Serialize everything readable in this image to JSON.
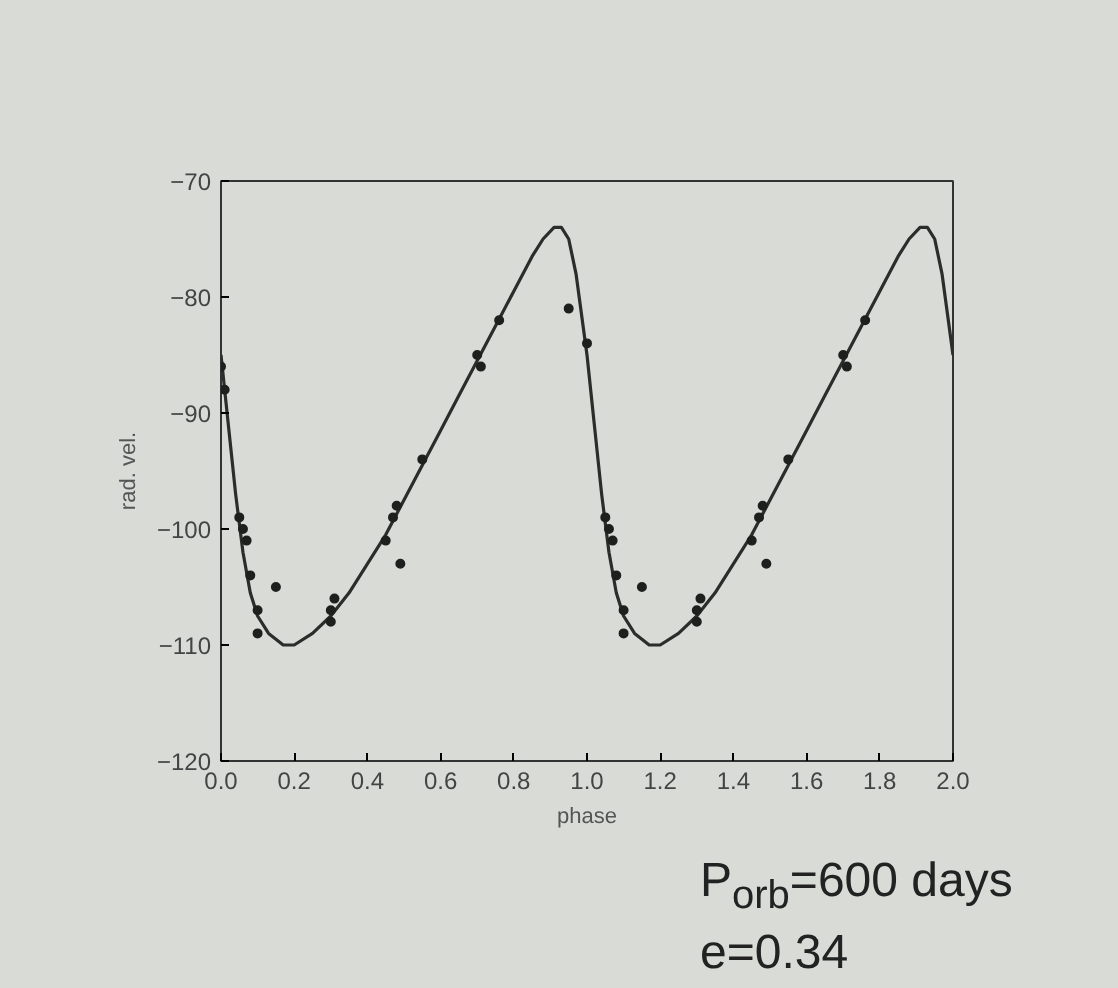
{
  "chart_data": {
    "type": "line",
    "xlabel": "phase",
    "ylabel": "rad. vel.",
    "xlim": [
      0,
      2
    ],
    "ylim": [
      -120,
      -70
    ],
    "xticks": [
      {
        "value": 0,
        "label": "0.0"
      },
      {
        "value": 0.2,
        "label": "0.2"
      },
      {
        "value": 0.4,
        "label": "0.4"
      },
      {
        "value": 0.6,
        "label": "0.6"
      },
      {
        "value": 0.8,
        "label": "0.8"
      },
      {
        "value": 1,
        "label": "1.0"
      },
      {
        "value": 1.2,
        "label": "1.2"
      },
      {
        "value": 1.4,
        "label": "1.4"
      },
      {
        "value": 1.6,
        "label": "1.6"
      },
      {
        "value": 1.8,
        "label": "1.8"
      },
      {
        "value": 2,
        "label": "2.0"
      }
    ],
    "yticks": [
      -120,
      -110,
      -100,
      -90,
      -80,
      -70
    ],
    "grid": false,
    "series": [
      {
        "color": "#2a2d2a",
        "line_style": "solid",
        "marker": "none",
        "x": [
          0,
          0.02,
          0.04,
          0.06,
          0.08,
          0.1,
          0.13,
          0.17,
          0.2,
          0.25,
          0.3,
          0.35,
          0.4,
          0.45,
          0.5,
          0.55,
          0.6,
          0.65,
          0.7,
          0.75,
          0.8,
          0.85,
          0.88,
          0.91,
          0.93,
          0.95,
          0.97,
          1.0,
          1.02,
          1.04,
          1.06,
          1.08,
          1.1,
          1.13,
          1.17,
          1.2,
          1.25,
          1.3,
          1.35,
          1.4,
          1.45,
          1.5,
          1.55,
          1.6,
          1.65,
          1.7,
          1.75,
          1.8,
          1.85,
          1.88,
          1.91,
          1.93,
          1.95,
          1.97,
          2.0
        ],
        "values": [
          -85,
          -91,
          -97,
          -102,
          -105.5,
          -107.5,
          -109,
          -110,
          -110,
          -109,
          -107.5,
          -105.5,
          -103,
          -100.5,
          -97.5,
          -94.5,
          -91.5,
          -88.5,
          -85.5,
          -82.5,
          -79.5,
          -76.5,
          -75,
          -74,
          -74,
          -75,
          -78,
          -85,
          -91,
          -97,
          -102,
          -105.5,
          -107.5,
          -109,
          -110,
          -110,
          -109,
          -107.5,
          -105.5,
          -103,
          -100.5,
          -97.5,
          -94.5,
          -91.5,
          -88.5,
          -85.5,
          -82.5,
          -79.5,
          -76.5,
          -75,
          -74,
          -74,
          -75,
          -78,
          -85
        ]
      },
      {
        "type": "scatter",
        "color": "#1e201e",
        "marker": "circle",
        "x": [
          0.0,
          0.01,
          0.05,
          0.06,
          0.07,
          0.08,
          0.1,
          0.1,
          0.15,
          0.3,
          0.31,
          0.3,
          0.45,
          0.47,
          0.48,
          0.49,
          0.55,
          0.7,
          0.71,
          0.76,
          0.95,
          1.0,
          1.05,
          1.06,
          1.07,
          1.08,
          1.1,
          1.1,
          1.15,
          1.3,
          1.31,
          1.3,
          1.45,
          1.47,
          1.48,
          1.49,
          1.55,
          1.7,
          1.71,
          1.76
        ],
        "values": [
          -86,
          -88,
          -99,
          -100,
          -101,
          -104,
          -107,
          -109,
          -105,
          -107,
          -106,
          -108,
          -101,
          -99,
          -98,
          -103,
          -94,
          -85,
          -86,
          -82,
          -81,
          -84,
          -99,
          -100,
          -101,
          -104,
          -107,
          -109,
          -105,
          -107,
          -106,
          -108,
          -101,
          -99,
          -98,
          -103,
          -94,
          -85,
          -86,
          -82
        ]
      }
    ],
    "annotations": [
      "P$_{orb}$=600 days",
      "e=0.34"
    ]
  }
}
